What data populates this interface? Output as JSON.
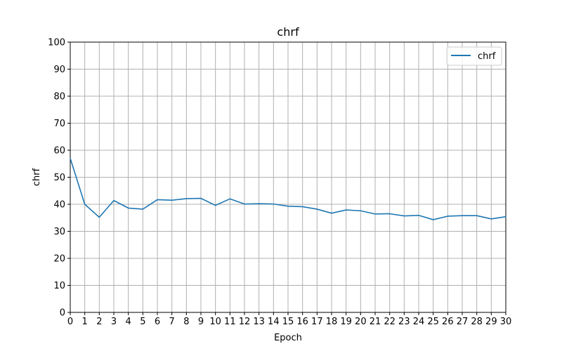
{
  "chart_data": {
    "type": "line",
    "title": "chrf",
    "xlabel": "Epoch",
    "ylabel": "chrf",
    "xlim": [
      0,
      30
    ],
    "ylim": [
      0,
      100
    ],
    "xticks": [
      0,
      1,
      2,
      3,
      4,
      5,
      6,
      7,
      8,
      9,
      10,
      11,
      12,
      13,
      14,
      15,
      16,
      17,
      18,
      19,
      20,
      21,
      22,
      23,
      24,
      25,
      26,
      27,
      28,
      29,
      30
    ],
    "yticks": [
      0,
      10,
      20,
      30,
      40,
      50,
      60,
      70,
      80,
      90,
      100
    ],
    "grid": true,
    "legend_position": "top-right",
    "series": [
      {
        "name": "chrf",
        "color": "#1f77b4",
        "x": [
          0,
          1,
          2,
          3,
          4,
          5,
          6,
          7,
          8,
          9,
          10,
          11,
          12,
          13,
          14,
          15,
          16,
          17,
          18,
          19,
          20,
          21,
          22,
          23,
          24,
          25,
          26,
          27,
          28,
          29,
          30
        ],
        "y": [
          57.0,
          40.0,
          35.2,
          41.4,
          38.6,
          38.2,
          41.7,
          41.5,
          42.1,
          42.2,
          39.6,
          42.0,
          40.1,
          40.2,
          40.1,
          39.3,
          39.1,
          38.2,
          36.7,
          37.9,
          37.6,
          36.4,
          36.5,
          35.7,
          35.9,
          34.3,
          35.6,
          35.8,
          35.8,
          34.6,
          35.4
        ]
      }
    ]
  }
}
